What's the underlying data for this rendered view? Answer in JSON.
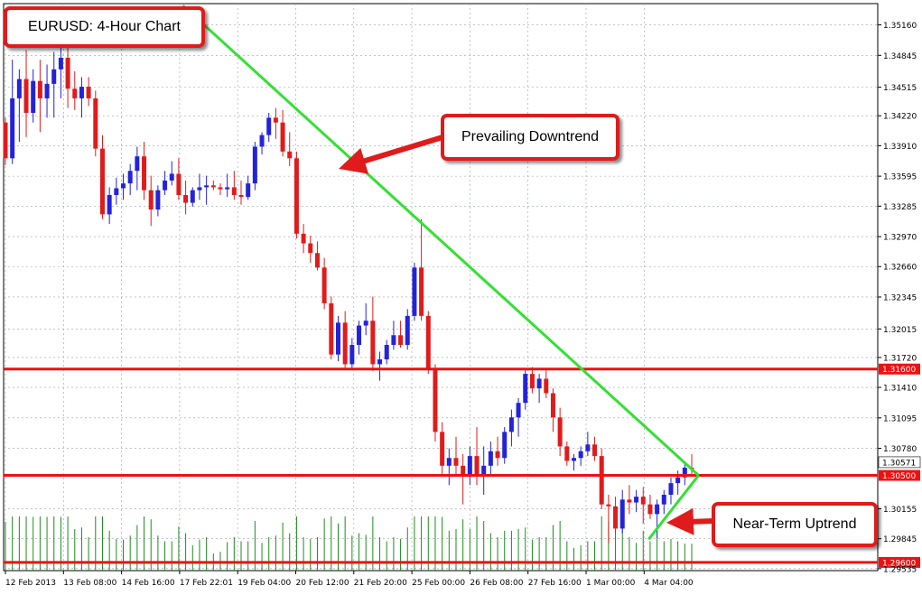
{
  "chart_data": {
    "type": "candlestick",
    "title": "EURUSD: 4-Hour Chart",
    "instrument": "EURUSD",
    "timeframe": "4-Hour",
    "y_ticks": [
      "1.35160",
      "1.34845",
      "1.34515",
      "1.34220",
      "1.33910",
      "1.33595",
      "1.33285",
      "1.32970",
      "1.32660",
      "1.32345",
      "1.32015",
      "1.31720",
      "1.31410",
      "1.31095",
      "1.30780",
      "1.30155",
      "1.29845",
      "1.29535"
    ],
    "x_ticks": [
      "12 Feb 2013",
      "13 Feb 08:00",
      "14 Feb 16:00",
      "17 Feb 22:01",
      "19 Feb 04:00",
      "20 Feb 12:00",
      "21 Feb 20:00",
      "25 Feb 00:00",
      "26 Feb 08:00",
      "27 Feb 16:00",
      "1 Mar 00:00",
      "4 Mar 04:00"
    ],
    "ylim": [
      1.29515,
      1.3538
    ],
    "grid": true,
    "bull_color": "#2323d9",
    "bear_color": "#e01b1b",
    "volume_color": "#1f8a1f",
    "trendline_color": "#33e033",
    "level_color": "#ee1111",
    "candles": [
      [
        1.3415,
        1.342,
        1.3371,
        1.3378
      ],
      [
        1.3378,
        1.348,
        1.3372,
        1.344
      ],
      [
        1.344,
        1.347,
        1.3395,
        1.346
      ],
      [
        1.346,
        1.349,
        1.34,
        1.3425
      ],
      [
        1.3425,
        1.347,
        1.3415,
        1.3458
      ],
      [
        1.3458,
        1.348,
        1.3405,
        1.344
      ],
      [
        1.344,
        1.3475,
        1.342,
        1.3455
      ],
      [
        1.3455,
        1.3488,
        1.342,
        1.347
      ],
      [
        1.347,
        1.3495,
        1.344,
        1.3482
      ],
      [
        1.3482,
        1.3498,
        1.343,
        1.345
      ],
      [
        1.345,
        1.3468,
        1.3428,
        1.344
      ],
      [
        1.344,
        1.3462,
        1.342,
        1.3452
      ],
      [
        1.3452,
        1.3462,
        1.3432,
        1.344
      ],
      [
        1.344,
        1.3448,
        1.338,
        1.3388
      ],
      [
        1.3388,
        1.3402,
        1.3315,
        1.332
      ],
      [
        1.332,
        1.3348,
        1.331,
        1.334
      ],
      [
        1.334,
        1.3358,
        1.333,
        1.3347
      ],
      [
        1.3347,
        1.3362,
        1.3335,
        1.3352
      ],
      [
        1.3352,
        1.3372,
        1.334,
        1.3365
      ],
      [
        1.3365,
        1.339,
        1.3345,
        1.338
      ],
      [
        1.338,
        1.3395,
        1.3335,
        1.3345
      ],
      [
        1.3345,
        1.336,
        1.3308,
        1.3325
      ],
      [
        1.3325,
        1.335,
        1.3318,
        1.3345
      ],
      [
        1.3345,
        1.3365,
        1.334,
        1.3355
      ],
      [
        1.3355,
        1.3375,
        1.335,
        1.3362
      ],
      [
        1.3362,
        1.3378,
        1.3335,
        1.334
      ],
      [
        1.334,
        1.3355,
        1.332,
        1.3332
      ],
      [
        1.3332,
        1.3348,
        1.3328,
        1.3345
      ],
      [
        1.3345,
        1.3362,
        1.3335,
        1.3348
      ],
      [
        1.3348,
        1.336,
        1.333,
        1.335
      ],
      [
        1.335,
        1.3355,
        1.3345,
        1.3348
      ],
      [
        1.3348,
        1.3352,
        1.334,
        1.3346
      ],
      [
        1.3346,
        1.3362,
        1.3338,
        1.3348
      ],
      [
        1.3348,
        1.3365,
        1.3335,
        1.334
      ],
      [
        1.334,
        1.3355,
        1.333,
        1.3338
      ],
      [
        1.3338,
        1.336,
        1.3335,
        1.3352
      ],
      [
        1.3352,
        1.3395,
        1.3345,
        1.339
      ],
      [
        1.339,
        1.3405,
        1.3382,
        1.3402
      ],
      [
        1.3402,
        1.3425,
        1.3395,
        1.342
      ],
      [
        1.342,
        1.343,
        1.3398,
        1.3415
      ],
      [
        1.3415,
        1.3428,
        1.338,
        1.3385
      ],
      [
        1.3385,
        1.3405,
        1.337,
        1.3378
      ],
      [
        1.3378,
        1.3385,
        1.3295,
        1.33
      ],
      [
        1.33,
        1.331,
        1.328,
        1.329
      ],
      [
        1.329,
        1.3298,
        1.327,
        1.328
      ],
      [
        1.328,
        1.3292,
        1.3262,
        1.3265
      ],
      [
        1.3265,
        1.3275,
        1.3222,
        1.3228
      ],
      [
        1.3228,
        1.3235,
        1.317,
        1.3175
      ],
      [
        1.3175,
        1.3215,
        1.3168,
        1.3208
      ],
      [
        1.3208,
        1.322,
        1.316,
        1.3165
      ],
      [
        1.3165,
        1.3192,
        1.316,
        1.3185
      ],
      [
        1.3185,
        1.321,
        1.3175,
        1.3205
      ],
      [
        1.3205,
        1.3228,
        1.3195,
        1.321
      ],
      [
        1.321,
        1.3235,
        1.3158,
        1.3165
      ],
      [
        1.3165,
        1.3178,
        1.3148,
        1.317
      ],
      [
        1.317,
        1.319,
        1.3165,
        1.3185
      ],
      [
        1.3185,
        1.321,
        1.318,
        1.3195
      ],
      [
        1.3195,
        1.321,
        1.3182,
        1.3185
      ],
      [
        1.3185,
        1.3222,
        1.318,
        1.3215
      ],
      [
        1.3215,
        1.327,
        1.321,
        1.3265
      ],
      [
        1.3265,
        1.3315,
        1.321,
        1.3215
      ],
      [
        1.3215,
        1.322,
        1.3155,
        1.316
      ],
      [
        1.316,
        1.3165,
        1.3085,
        1.3095
      ],
      [
        1.3095,
        1.3105,
        1.305,
        1.306
      ],
      [
        1.306,
        1.3078,
        1.304,
        1.3068
      ],
      [
        1.3068,
        1.309,
        1.305,
        1.306
      ],
      [
        1.306,
        1.3072,
        1.302,
        1.305
      ],
      [
        1.305,
        1.308,
        1.304,
        1.307
      ],
      [
        1.307,
        1.31,
        1.304,
        1.305
      ],
      [
        1.305,
        1.308,
        1.303,
        1.306
      ],
      [
        1.306,
        1.3085,
        1.305,
        1.3075
      ],
      [
        1.3075,
        1.309,
        1.306,
        1.3068
      ],
      [
        1.3068,
        1.31,
        1.3062,
        1.3095
      ],
      [
        1.3095,
        1.3118,
        1.308,
        1.311
      ],
      [
        1.311,
        1.313,
        1.309,
        1.3125
      ],
      [
        1.3125,
        1.316,
        1.3118,
        1.3155
      ],
      [
        1.3155,
        1.3162,
        1.3135,
        1.314
      ],
      [
        1.314,
        1.3155,
        1.3125,
        1.315
      ],
      [
        1.315,
        1.316,
        1.313,
        1.3135
      ],
      [
        1.3135,
        1.314,
        1.3095,
        1.311
      ],
      [
        1.311,
        1.312,
        1.307,
        1.308
      ],
      [
        1.308,
        1.3085,
        1.306,
        1.3065
      ],
      [
        1.3065,
        1.3072,
        1.3055,
        1.3068
      ],
      [
        1.3068,
        1.308,
        1.306,
        1.3075
      ],
      [
        1.3075,
        1.3095,
        1.307,
        1.3082
      ],
      [
        1.3082,
        1.309,
        1.3065,
        1.307
      ],
      [
        1.307,
        1.3078,
        1.3015,
        1.302
      ],
      [
        1.302,
        1.303,
        1.298,
        1.3018
      ],
      [
        1.3018,
        1.3028,
        1.299,
        1.2995
      ],
      [
        1.2995,
        1.3035,
        1.299,
        1.3025
      ],
      [
        1.3025,
        1.304,
        1.301,
        1.3022
      ],
      [
        1.3022,
        1.3035,
        1.3012,
        1.3028
      ],
      [
        1.3028,
        1.3038,
        1.3,
        1.302
      ],
      [
        1.302,
        1.303,
        1.3005,
        1.301
      ],
      [
        1.301,
        1.3025,
        1.2985,
        1.302
      ],
      [
        1.302,
        1.3035,
        1.301,
        1.303
      ],
      [
        1.303,
        1.3048,
        1.302,
        1.3042
      ],
      [
        1.3042,
        1.3055,
        1.303,
        1.3048
      ],
      [
        1.3048,
        1.3062,
        1.304,
        1.3058
      ],
      [
        1.3058,
        1.3072,
        1.305,
        1.3057
      ]
    ],
    "levels": [
      {
        "label": "1.31600",
        "price": 1.316
      },
      {
        "label": "1.30500",
        "price": 1.305
      },
      {
        "label": "1.29600",
        "price": 1.296
      }
    ],
    "current_price_label": "1.30571",
    "current_price": 1.30571,
    "trendlines": [
      {
        "name": "downtrend",
        "from": [
          0.205,
          1.3536
        ],
        "to": [
          0.795,
          1.305
        ]
      },
      {
        "name": "uptrend",
        "from": [
          0.738,
          1.2984
        ],
        "to": [
          0.795,
          1.305
        ]
      }
    ],
    "annotations": [
      {
        "id": "title",
        "text": "EURUSD: 4-Hour Chart"
      },
      {
        "id": "downtrend",
        "text": "Prevailing Downtrend"
      },
      {
        "id": "uptrend",
        "text": "Near-Term Uptrend"
      }
    ]
  }
}
